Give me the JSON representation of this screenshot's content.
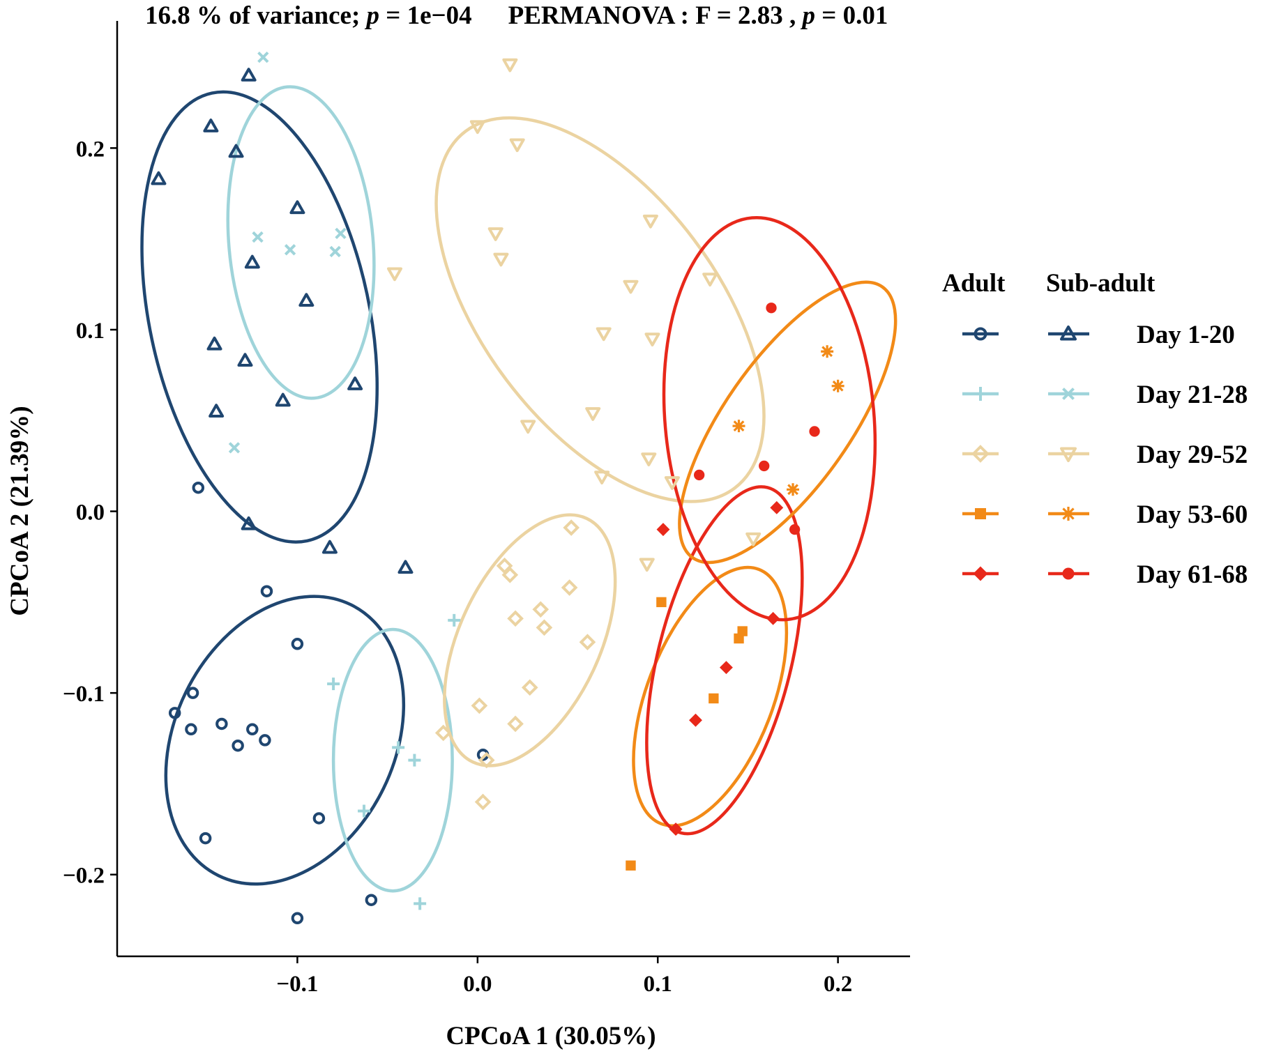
{
  "chart_data": {
    "type": "scatter",
    "title_parts": [
      {
        "text": "16.8 % of variance; ",
        "italic": false
      },
      {
        "text": "p",
        "italic": true
      },
      {
        "text": " = 1e−04",
        "italic": false
      },
      {
        "text": "PERMANOVA : F = 2.83 ,  ",
        "italic": false,
        "gap_before": true
      },
      {
        "text": "p",
        "italic": true
      },
      {
        "text": " = 0.01",
        "italic": false
      }
    ],
    "xlabel": "CPCoA 1 (30.05%)",
    "ylabel": "CPCoA 2 (21.39%)",
    "xlim": [
      -0.2,
      0.24
    ],
    "ylim": [
      -0.245,
      0.27
    ],
    "xticks": [
      -0.1,
      0.0,
      0.1,
      0.2
    ],
    "xtick_labels": [
      "−0.1",
      "0.0",
      "0.1",
      "0.2"
    ],
    "yticks": [
      -0.2,
      -0.1,
      0.0,
      0.1,
      0.2
    ],
    "ytick_labels": [
      "−0.2",
      "−0.1",
      "0.0",
      "0.1",
      "0.2"
    ],
    "grid": false,
    "legend": {
      "placement": "right",
      "col_headers": [
        "Adult",
        "Sub-adult"
      ],
      "rows": [
        {
          "label": "Day 1-20",
          "color": "#1f4670",
          "adult_shape": "circle",
          "sub_shape": "triangle"
        },
        {
          "label": "Day 21-28",
          "color": "#9fd4da",
          "adult_shape": "plus",
          "sub_shape": "cross"
        },
        {
          "label": "Day 29-52",
          "color": "#ebd3a1",
          "adult_shape": "diamond",
          "sub_shape": "triangle-down"
        },
        {
          "label": "Day 53-60",
          "color": "#f28a17",
          "adult_shape": "square",
          "sub_shape": "asterisk"
        },
        {
          "label": "Day 61-68",
          "color": "#e8281a",
          "adult_shape": "diamond-filled",
          "sub_shape": "dot"
        }
      ]
    },
    "series": [
      {
        "group": "Adult",
        "day": "Day 1-20",
        "shape": "circle",
        "color": "#1f4670",
        "points": [
          [
            -0.155,
            0.013
          ],
          [
            -0.117,
            -0.044
          ],
          [
            -0.1,
            -0.073
          ],
          [
            -0.158,
            -0.1
          ],
          [
            -0.168,
            -0.111
          ],
          [
            -0.159,
            -0.12
          ],
          [
            -0.142,
            -0.117
          ],
          [
            -0.125,
            -0.12
          ],
          [
            -0.133,
            -0.129
          ],
          [
            -0.118,
            -0.126
          ],
          [
            -0.088,
            -0.169
          ],
          [
            -0.151,
            -0.18
          ],
          [
            -0.059,
            -0.214
          ],
          [
            -0.1,
            -0.224
          ],
          [
            0.003,
            -0.134
          ]
        ],
        "ellipse": {
          "cx": -0.107,
          "cy": -0.126,
          "rx": 0.061,
          "ry": 0.083,
          "angle": 26
        }
      },
      {
        "group": "Adult",
        "day": "Day 21-28",
        "shape": "plus",
        "color": "#9fd4da",
        "points": [
          [
            -0.013,
            -0.06
          ],
          [
            -0.08,
            -0.095
          ],
          [
            -0.044,
            -0.13
          ],
          [
            -0.035,
            -0.137
          ],
          [
            -0.063,
            -0.165
          ],
          [
            -0.032,
            -0.216
          ]
        ],
        "ellipse": {
          "cx": -0.047,
          "cy": -0.137,
          "rx": 0.033,
          "ry": 0.072,
          "angle": 0
        }
      },
      {
        "group": "Adult",
        "day": "Day 29-52",
        "shape": "diamond",
        "color": "#ebd3a1",
        "points": [
          [
            0.015,
            -0.03
          ],
          [
            0.018,
            -0.035
          ],
          [
            0.052,
            -0.009
          ],
          [
            0.051,
            -0.042
          ],
          [
            0.035,
            -0.054
          ],
          [
            0.037,
            -0.064
          ],
          [
            0.021,
            -0.059
          ],
          [
            0.061,
            -0.072
          ],
          [
            0.029,
            -0.097
          ],
          [
            0.001,
            -0.107
          ],
          [
            0.021,
            -0.117
          ],
          [
            -0.019,
            -0.122
          ],
          [
            0.005,
            -0.137
          ],
          [
            0.003,
            -0.16
          ]
        ],
        "ellipse": {
          "cx": 0.029,
          "cy": -0.071,
          "rx": 0.039,
          "ry": 0.074,
          "angle": 25
        }
      },
      {
        "group": "Adult",
        "day": "Day 53-60",
        "shape": "square",
        "color": "#f28a17",
        "points": [
          [
            0.102,
            -0.05
          ],
          [
            0.147,
            -0.066
          ],
          [
            0.145,
            -0.07
          ],
          [
            0.131,
            -0.103
          ],
          [
            0.085,
            -0.195
          ]
        ],
        "ellipse": {
          "cx": 0.129,
          "cy": -0.102,
          "rx": 0.035,
          "ry": 0.075,
          "angle": 21
        }
      },
      {
        "group": "Adult",
        "day": "Day 61-68",
        "shape": "diamond-filled",
        "color": "#e8281a",
        "points": [
          [
            0.103,
            -0.01
          ],
          [
            0.164,
            -0.059
          ],
          [
            0.138,
            -0.086
          ],
          [
            0.121,
            -0.115
          ],
          [
            0.11,
            -0.175
          ],
          [
            0.166,
            0.002
          ]
        ],
        "ellipse": {
          "cx": 0.137,
          "cy": -0.082,
          "rx": 0.037,
          "ry": 0.098,
          "angle": 14
        }
      },
      {
        "group": "Sub-adult",
        "day": "Day 1-20",
        "shape": "triangle",
        "color": "#1f4670",
        "points": [
          [
            -0.177,
            0.183
          ],
          [
            -0.127,
            0.24
          ],
          [
            -0.148,
            0.212
          ],
          [
            -0.134,
            0.198
          ],
          [
            -0.1,
            0.167
          ],
          [
            -0.125,
            0.137
          ],
          [
            -0.095,
            0.116
          ],
          [
            -0.146,
            0.092
          ],
          [
            -0.129,
            0.083
          ],
          [
            -0.068,
            0.07
          ],
          [
            -0.108,
            0.061
          ],
          [
            -0.145,
            0.055
          ],
          [
            -0.127,
            -0.007
          ],
          [
            -0.082,
            -0.02
          ],
          [
            -0.04,
            -0.031
          ]
        ],
        "ellipse": {
          "cx": -0.121,
          "cy": 0.107,
          "rx": 0.061,
          "ry": 0.126,
          "angle": -12
        }
      },
      {
        "group": "Sub-adult",
        "day": "Day 21-28",
        "shape": "cross",
        "color": "#9fd4da",
        "points": [
          [
            -0.119,
            0.25
          ],
          [
            -0.122,
            0.151
          ],
          [
            -0.104,
            0.144
          ],
          [
            -0.079,
            0.143
          ],
          [
            -0.076,
            0.153
          ],
          [
            -0.135,
            0.035
          ]
        ],
        "ellipse": {
          "cx": -0.098,
          "cy": 0.148,
          "rx": 0.04,
          "ry": 0.086,
          "angle": -5
        }
      },
      {
        "group": "Sub-adult",
        "day": "Day 29-52",
        "shape": "triangle-down",
        "color": "#ebd3a1",
        "points": [
          [
            0.018,
            0.246
          ],
          [
            0.0,
            0.212
          ],
          [
            0.022,
            0.202
          ],
          [
            0.01,
            0.153
          ],
          [
            0.013,
            0.139
          ],
          [
            -0.046,
            0.131
          ],
          [
            0.096,
            0.16
          ],
          [
            0.129,
            0.128
          ],
          [
            0.085,
            0.124
          ],
          [
            0.07,
            0.098
          ],
          [
            0.097,
            0.095
          ],
          [
            0.064,
            0.054
          ],
          [
            0.028,
            0.047
          ],
          [
            0.095,
            0.029
          ],
          [
            0.069,
            0.019
          ],
          [
            0.108,
            0.016
          ],
          [
            0.153,
            -0.015
          ],
          [
            0.094,
            -0.029
          ]
        ],
        "ellipse": {
          "cx": 0.068,
          "cy": 0.111,
          "rx": 0.065,
          "ry": 0.123,
          "angle": -37
        }
      },
      {
        "group": "Sub-adult",
        "day": "Day 53-60",
        "shape": "asterisk",
        "color": "#f28a17",
        "points": [
          [
            0.194,
            0.088
          ],
          [
            0.2,
            0.069
          ],
          [
            0.145,
            0.047
          ],
          [
            0.175,
            0.012
          ]
        ],
        "ellipse": {
          "cx": 0.172,
          "cy": 0.049,
          "rx": 0.035,
          "ry": 0.091,
          "angle": 35
        }
      },
      {
        "group": "Sub-adult",
        "day": "Day 61-68",
        "shape": "dot",
        "color": "#e8281a",
        "points": [
          [
            0.163,
            0.112
          ],
          [
            0.187,
            0.044
          ],
          [
            0.159,
            0.025
          ],
          [
            0.123,
            0.02
          ],
          [
            0.176,
            -0.01
          ]
        ],
        "ellipse": {
          "cx": 0.162,
          "cy": 0.051,
          "rx": 0.058,
          "ry": 0.111,
          "angle": -5
        }
      }
    ]
  }
}
